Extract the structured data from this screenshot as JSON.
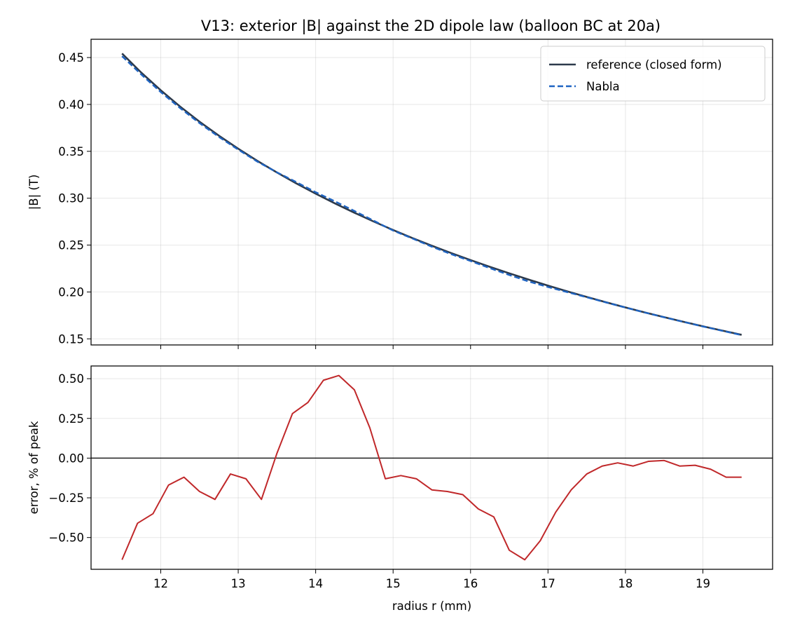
{
  "title": "V13: exterior |B| against the 2D dipole law (balloon BC at 20a)",
  "chart_data": [
    {
      "type": "line",
      "ylabel": "|B| (T)",
      "xlim": [
        11.1,
        19.9
      ],
      "ylim": [
        0.1435,
        0.4695
      ],
      "xticks": [
        12,
        13,
        14,
        15,
        16,
        17,
        18,
        19
      ],
      "yticks": [
        0.15,
        0.2,
        0.25,
        0.3,
        0.35,
        0.4,
        0.45
      ],
      "grid": true,
      "legend_position": "upper-right",
      "series": [
        {
          "name": "reference (closed form)",
          "color": "#2d3a4b",
          "style": "solid",
          "x": [
            11.5,
            11.75,
            12,
            12.25,
            12.5,
            12.75,
            13,
            13.25,
            13.5,
            13.75,
            14,
            14.25,
            14.5,
            14.75,
            15,
            15.25,
            15.5,
            15.75,
            16,
            16.25,
            16.5,
            16.75,
            17,
            17.25,
            17.5,
            17.75,
            18,
            18.25,
            18.5,
            18.75,
            19,
            19.25,
            19.5
          ],
          "y": [
            0.4543,
            0.4338,
            0.4151,
            0.3977,
            0.3816,
            0.3667,
            0.3528,
            0.3397,
            0.3274,
            0.3158,
            0.3048,
            0.2944,
            0.2845,
            0.2751,
            0.2661,
            0.2575,
            0.2493,
            0.2415,
            0.234,
            0.2268,
            0.2199,
            0.2132,
            0.2068,
            0.2006,
            0.1947,
            0.189,
            0.1835,
            0.1782,
            0.1731,
            0.1682,
            0.1634,
            0.1588,
            0.1543
          ]
        },
        {
          "name": "Nabla",
          "color": "#1f64c2",
          "style": "dashed",
          "x": [
            11.5,
            11.75,
            12,
            12.25,
            12.5,
            12.75,
            13,
            13.25,
            13.5,
            13.75,
            14,
            14.25,
            14.5,
            14.75,
            15,
            15.25,
            15.5,
            15.75,
            16,
            16.25,
            16.5,
            16.75,
            17,
            17.25,
            17.5,
            17.75,
            18,
            18.25,
            18.5,
            18.75,
            19,
            19.25,
            19.5
          ],
          "y": [
            0.4515,
            0.4318,
            0.4132,
            0.3961,
            0.3801,
            0.3654,
            0.3518,
            0.3389,
            0.3276,
            0.3172,
            0.3064,
            0.2966,
            0.2864,
            0.276,
            0.2655,
            0.257,
            0.2483,
            0.2403,
            0.233,
            0.2254,
            0.2181,
            0.2112,
            0.2053,
            0.1998,
            0.1944,
            0.1888,
            0.1834,
            0.1781,
            0.173,
            0.1681,
            0.1632,
            0.1586,
            0.154
          ]
        }
      ]
    },
    {
      "type": "line",
      "xlabel": "radius r (mm)",
      "ylabel": "error, % of peak",
      "xlim": [
        11.1,
        19.9
      ],
      "ylim": [
        -0.7,
        0.58
      ],
      "xticks": [
        12,
        13,
        14,
        15,
        16,
        17,
        18,
        19
      ],
      "yticks": [
        -0.5,
        -0.25,
        0.0,
        0.25,
        0.5
      ],
      "grid": true,
      "zero_line": true,
      "series": [
        {
          "color": "#c0282a",
          "style": "solid",
          "x": [
            11.5,
            11.7,
            11.9,
            12.1,
            12.3,
            12.5,
            12.7,
            12.9,
            13.1,
            13.3,
            13.5,
            13.7,
            13.9,
            14.1,
            14.3,
            14.5,
            14.7,
            14.9,
            15.1,
            15.3,
            15.5,
            15.7,
            15.9,
            16.1,
            16.3,
            16.5,
            16.7,
            16.9,
            17.1,
            17.3,
            17.5,
            17.7,
            17.9,
            18.1,
            18.3,
            18.5,
            18.7,
            18.9,
            19.1,
            19.3,
            19.5
          ],
          "y": [
            -0.64,
            -0.41,
            -0.35,
            -0.17,
            -0.12,
            -0.21,
            -0.26,
            -0.1,
            -0.13,
            -0.26,
            0.03,
            0.28,
            0.35,
            0.49,
            0.52,
            0.43,
            0.19,
            -0.13,
            -0.11,
            -0.13,
            -0.2,
            -0.21,
            -0.23,
            -0.32,
            -0.37,
            -0.58,
            -0.64,
            -0.52,
            -0.34,
            -0.2,
            -0.1,
            -0.05,
            -0.03,
            -0.05,
            -0.02,
            -0.015,
            -0.05,
            -0.045,
            -0.07,
            -0.12,
            -0.12
          ]
        }
      ]
    }
  ]
}
